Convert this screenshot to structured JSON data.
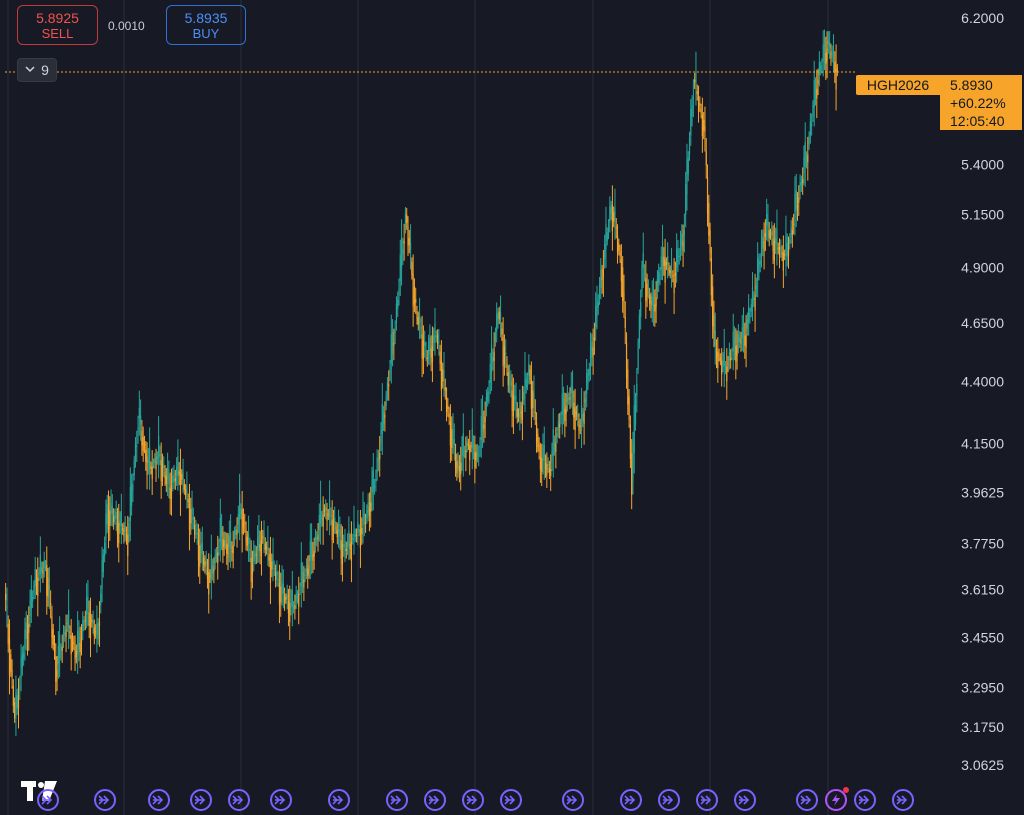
{
  "trade": {
    "sell_price": "5.8925",
    "sell_label": "SELL",
    "buy_price": "5.8935",
    "buy_label": "BUY",
    "spread": "0.0010"
  },
  "indicator_toggle": {
    "count": "9"
  },
  "symbol": "HGH2026",
  "last_price": {
    "value": "5.8930",
    "change": "+60.22%",
    "countdown": "12:05:40"
  },
  "colors": {
    "background": "#171a25",
    "up": "#26a69a",
    "down": "#f7a52a",
    "grid": "#2a2e39",
    "price_line": "#f7a52a",
    "replay_icon": "#7b61ff"
  },
  "icons": [
    "chevron-down-icon",
    "tradingview-logo-icon",
    "replay-arrow-icon",
    "flash-icon"
  ],
  "chart_data": {
    "type": "line",
    "y_scale": "log",
    "grid": "vertical only",
    "ylim": [
      3.02,
      6.26
    ],
    "y_tick_labels": [
      "6.2000",
      "5.4000",
      "5.1500",
      "4.9000",
      "4.6500",
      "4.4000",
      "4.1500",
      "3.9625",
      "3.7750",
      "3.6150",
      "3.4550",
      "3.2950",
      "3.1750",
      "3.0625"
    ],
    "y_ticks": [
      6.2,
      5.4,
      5.15,
      4.9,
      4.65,
      4.4,
      4.15,
      3.9625,
      3.775,
      3.615,
      3.455,
      3.295,
      3.175,
      3.0625
    ],
    "current_value": 5.893,
    "series": [
      {
        "values": [
          3.6,
          3.2,
          3.45,
          3.65,
          3.7,
          3.35,
          3.5,
          3.4,
          3.55,
          3.45,
          3.9,
          3.85,
          3.8,
          4.25,
          4.05,
          4.1,
          3.98,
          4.05,
          3.9,
          3.75,
          3.65,
          3.8,
          3.75,
          3.9,
          3.7,
          3.8,
          3.7,
          3.6,
          3.55,
          3.65,
          3.75,
          3.9,
          3.85,
          3.75,
          3.8,
          3.85,
          4.0,
          4.3,
          4.65,
          5.15,
          4.7,
          4.5,
          4.6,
          4.3,
          4.05,
          4.15,
          4.1,
          4.35,
          4.7,
          4.4,
          4.25,
          4.45,
          4.1,
          4.05,
          4.25,
          4.35,
          4.2,
          4.5,
          4.85,
          5.2,
          4.9,
          4.0,
          4.9,
          4.7,
          4.95,
          4.85,
          5.05,
          5.85,
          5.6,
          4.55,
          4.45,
          4.55,
          4.6,
          4.8,
          5.1,
          5.0,
          4.95,
          5.2,
          5.45,
          5.85,
          6.05,
          5.893
        ]
      }
    ]
  }
}
